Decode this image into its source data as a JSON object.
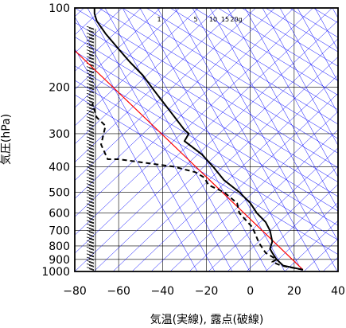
{
  "chart_data": {
    "type": "line",
    "xlabel": "気温(実線), 露点(破線)",
    "ylabel": "気圧(hPa)",
    "xlim": [
      -80,
      40
    ],
    "ylim": [
      1000,
      100
    ],
    "y_scale": "log",
    "x_ticks": [
      -80,
      -60,
      -40,
      -20,
      0,
      20,
      40
    ],
    "y_ticks": [
      100,
      200,
      300,
      400,
      500,
      600,
      700,
      800,
      900,
      1000
    ],
    "mixing_ratio_labels": [
      "1",
      "5",
      "10",
      "15",
      "20g"
    ],
    "grid": true,
    "colors": {
      "temperature": "#000000",
      "dewpoint": "#000000",
      "parcel": "#ff0000",
      "isotherm_skew": "#0000ff",
      "grid": "#000000",
      "wind_barbs": "#000000"
    },
    "series": [
      {
        "role": "temperature",
        "style": "solid",
        "points": [
          [
            24,
            985
          ],
          [
            15,
            950
          ],
          [
            12,
            900
          ],
          [
            10,
            850
          ],
          [
            9,
            820
          ],
          [
            10,
            770
          ],
          [
            9,
            700
          ],
          [
            7,
            650
          ],
          [
            3,
            600
          ],
          [
            0,
            550
          ],
          [
            -5,
            500
          ],
          [
            -12,
            450
          ],
          [
            -17,
            400
          ],
          [
            -22,
            360
          ],
          [
            -30,
            320
          ],
          [
            -28,
            300
          ],
          [
            -30,
            290
          ],
          [
            -36,
            250
          ],
          [
            -43,
            210
          ],
          [
            -49,
            180
          ],
          [
            -55,
            160
          ],
          [
            -61,
            140
          ],
          [
            -66,
            125
          ],
          [
            -70,
            112
          ],
          [
            -71,
            105
          ],
          [
            -71,
            100
          ]
        ]
      },
      {
        "role": "dewpoint",
        "style": "dashed",
        "points": [
          [
            24,
            985
          ],
          [
            14,
            950
          ],
          [
            10,
            920
          ],
          [
            12,
            900
          ],
          [
            7,
            850
          ],
          [
            4,
            780
          ],
          [
            1,
            680
          ],
          [
            -5,
            600
          ],
          [
            -6,
            550
          ],
          [
            -12,
            500
          ],
          [
            -19,
            470
          ],
          [
            -21,
            440
          ],
          [
            -25,
            420
          ],
          [
            -35,
            400
          ],
          [
            -60,
            375
          ],
          [
            -65,
            375
          ],
          [
            -68,
            330
          ],
          [
            -66,
            280
          ],
          [
            -70,
            260
          ],
          [
            -72,
            230
          ]
        ]
      },
      {
        "role": "parcel",
        "style": "solid",
        "points": [
          [
            24,
            985
          ],
          [
            -80,
            145
          ]
        ]
      }
    ]
  }
}
